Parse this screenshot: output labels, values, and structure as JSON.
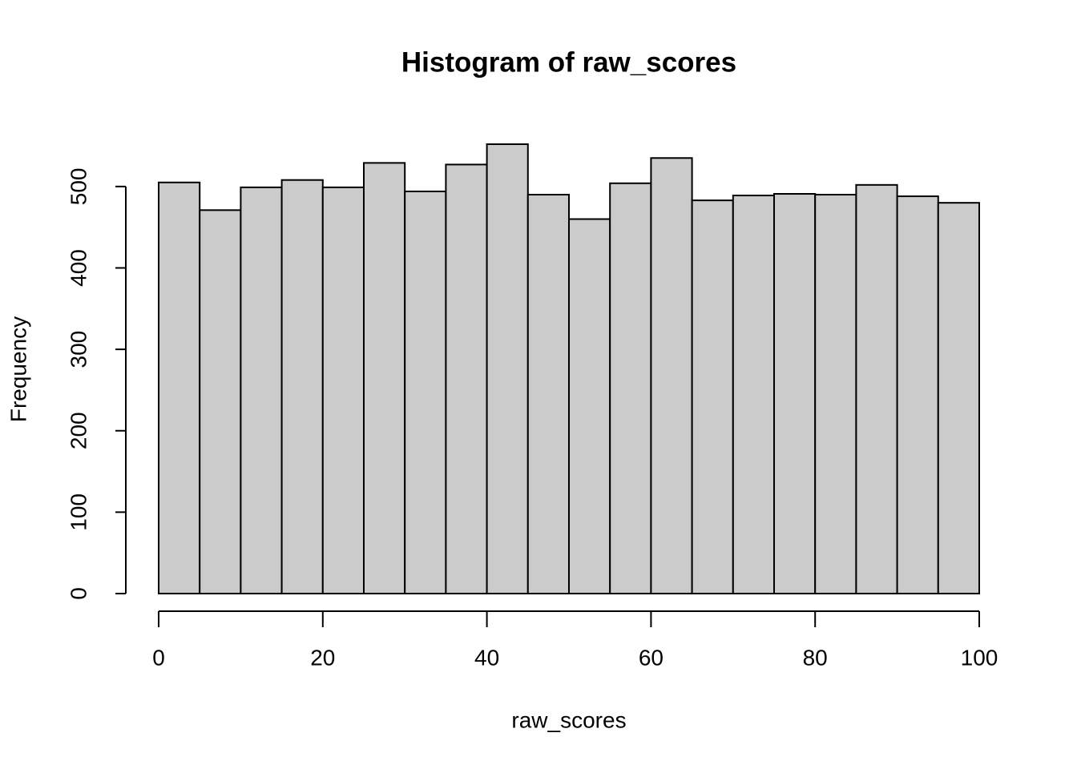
{
  "chart_data": {
    "type": "histogram",
    "title": "Histogram of raw_scores",
    "x_label": "raw_scores",
    "y_label": "Frequency",
    "bins": [
      0,
      5,
      10,
      15,
      20,
      25,
      30,
      35,
      40,
      45,
      50,
      55,
      60,
      65,
      70,
      75,
      80,
      85,
      90,
      95,
      100
    ],
    "values": [
      505,
      471,
      499,
      508,
      499,
      529,
      494,
      527,
      552,
      490,
      460,
      504,
      535,
      483,
      489,
      491,
      490,
      502,
      488,
      480
    ],
    "color": "#cbcbcb",
    "xlim": [
      0,
      100
    ],
    "xticks": [
      0,
      20,
      40,
      60,
      80,
      100
    ],
    "ylim": [
      0,
      552
    ],
    "yticks": [
      0,
      100,
      200,
      300,
      400,
      500
    ]
  }
}
